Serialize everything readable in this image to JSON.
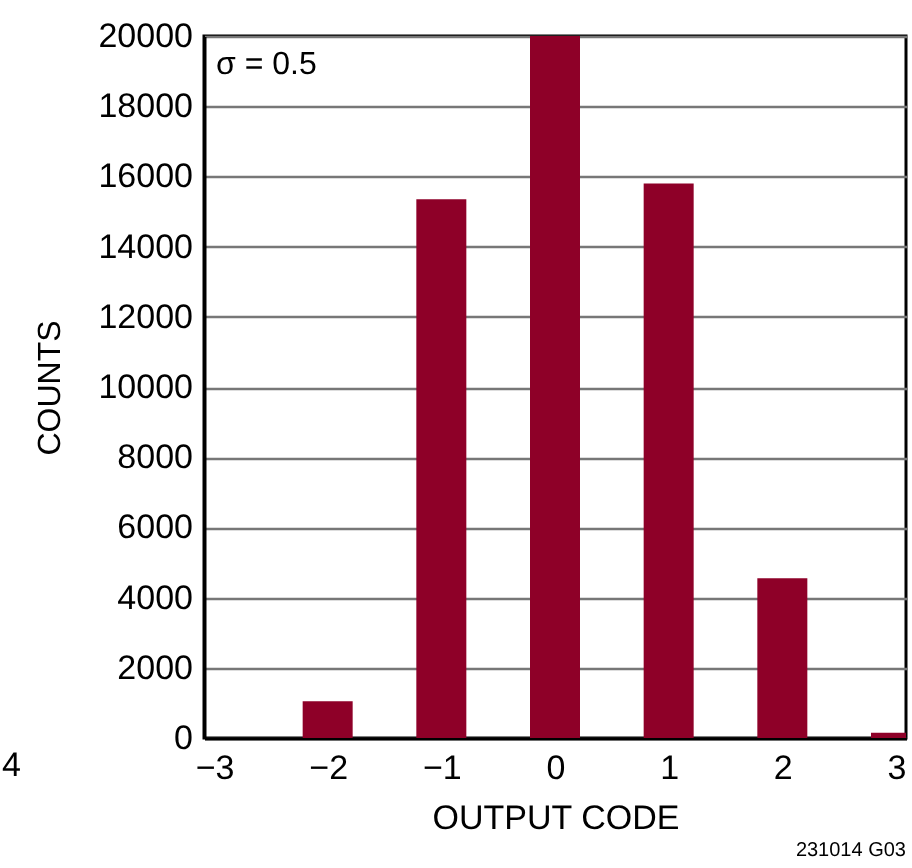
{
  "chart_data": {
    "type": "bar",
    "x": [
      -2,
      -1,
      0,
      1,
      2,
      3
    ],
    "values": [
      1050,
      15350,
      20000,
      15800,
      4550,
      150
    ],
    "color": "#8e0028",
    "xlim": [
      -3,
      3
    ],
    "xticks": [
      -3,
      -2,
      -1,
      0,
      1,
      2,
      3
    ],
    "ylim": [
      0,
      20000
    ],
    "yticks": [
      0,
      2000,
      4000,
      6000,
      8000,
      10000,
      12000,
      14000,
      16000,
      18000,
      20000
    ],
    "xlabel": "OUTPUT CODE",
    "ylabel": "COUNTS",
    "annotations": [
      "σ = 0.5",
      "231014 G03",
      "4"
    ],
    "grid": "y"
  }
}
